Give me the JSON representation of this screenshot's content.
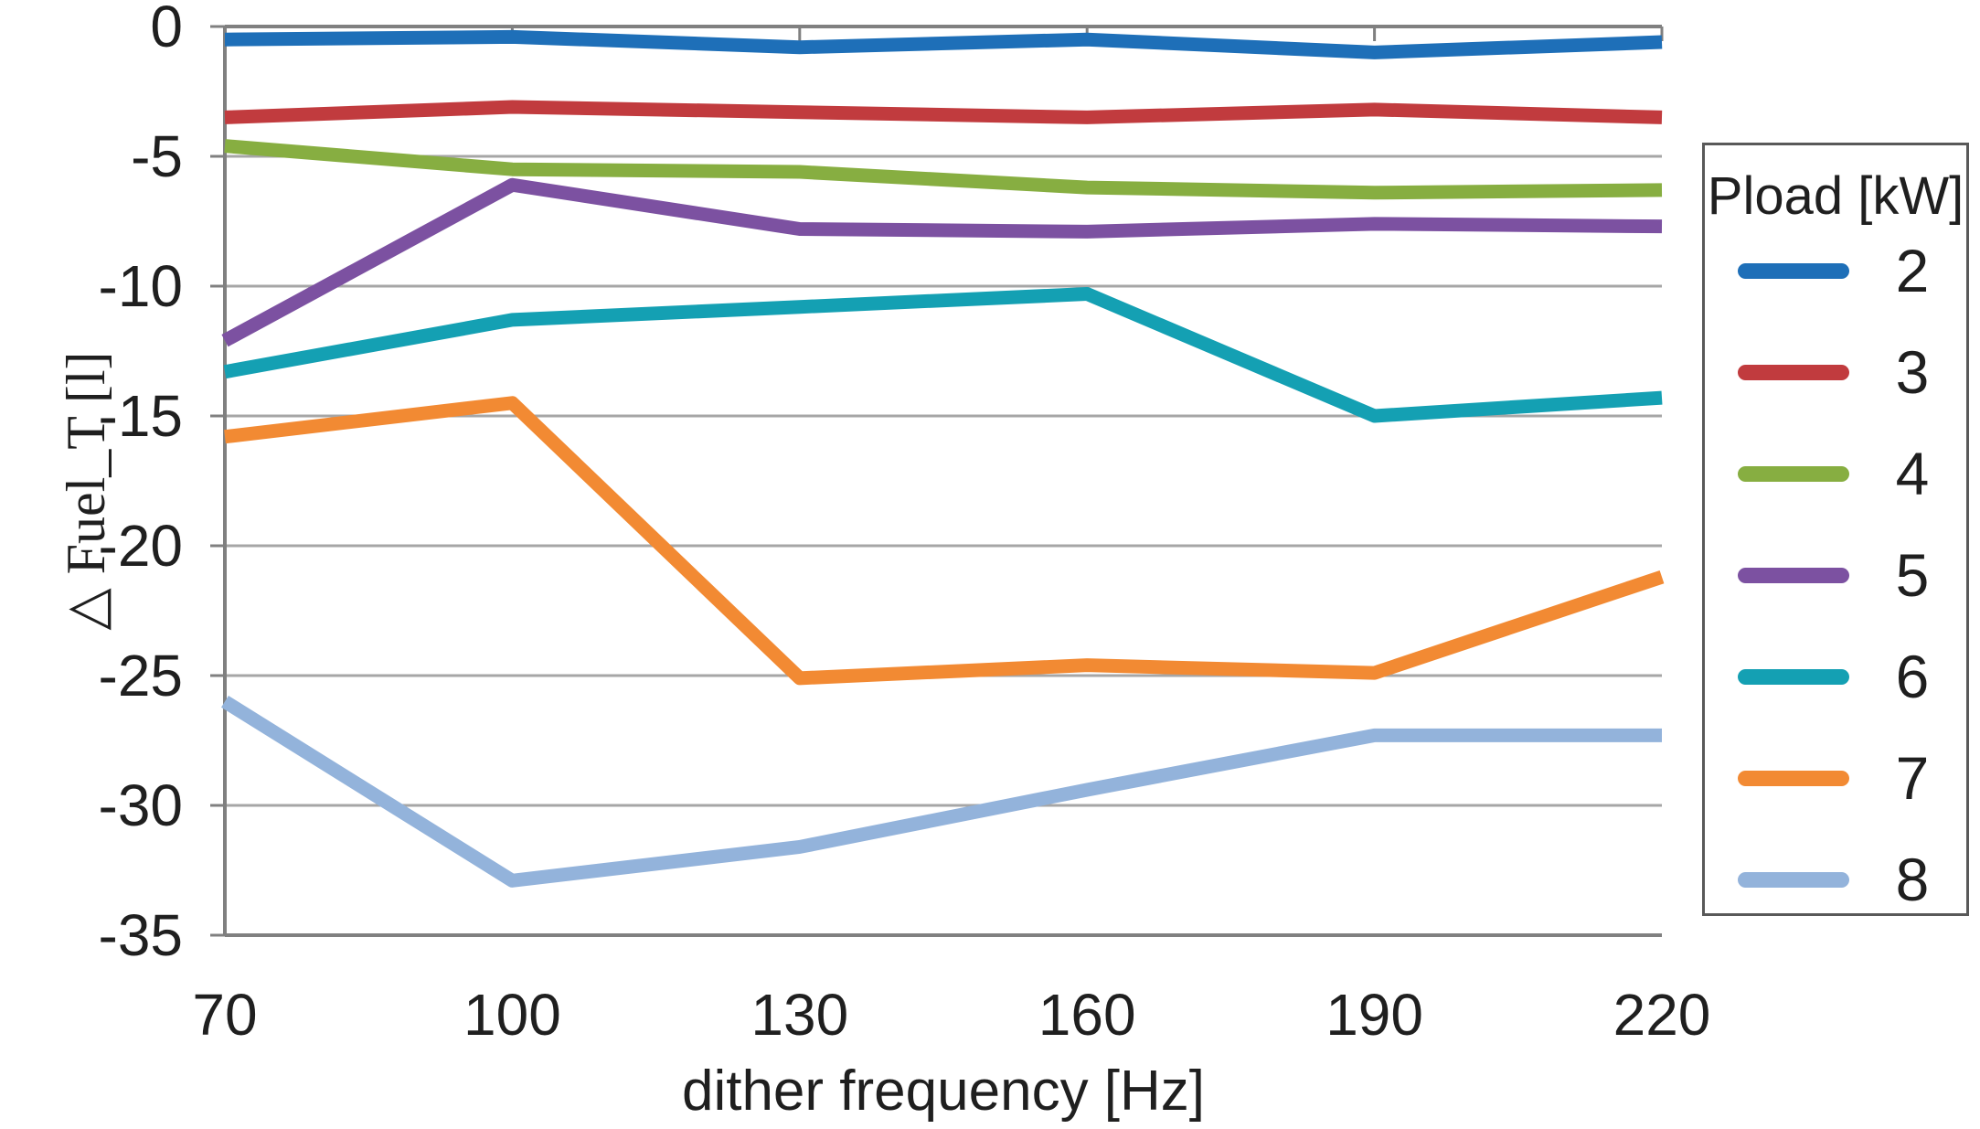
{
  "colors": {
    "background": "#FFFFFF",
    "grid": "#A6A6A6",
    "axis": "#808080",
    "text": "#1F1F1F",
    "legend_border": "#595959"
  },
  "chart_data": {
    "type": "line",
    "title": "",
    "xlabel": "dither frequency [Hz]",
    "ylabel": "△ Fuel_T [l]",
    "x": [
      70,
      100,
      130,
      160,
      190,
      220
    ],
    "x_tick_labels": [
      "70",
      "100",
      "130",
      "160",
      "190",
      "220"
    ],
    "y_ticks": [
      0,
      -5,
      -10,
      -15,
      -20,
      -25,
      -30,
      -35
    ],
    "y_tick_labels": [
      "0",
      "-5",
      "-10",
      "-15",
      "-20",
      "-25",
      "-30",
      "-35"
    ],
    "ylim": [
      -35,
      0
    ],
    "grid": true,
    "legend_title": "Pload [kW]",
    "legend_position": "right",
    "series": [
      {
        "name": "2",
        "color": "#1E6FB8",
        "values": [
          -0.5,
          -0.4,
          -0.8,
          -0.5,
          -1.0,
          -0.6
        ]
      },
      {
        "name": "3",
        "color": "#C13B3E",
        "values": [
          -3.5,
          -3.1,
          -3.3,
          -3.5,
          -3.2,
          -3.5
        ]
      },
      {
        "name": "4",
        "color": "#87AE41",
        "values": [
          -4.6,
          -5.5,
          -5.6,
          -6.2,
          -6.4,
          -6.3
        ]
      },
      {
        "name": "5",
        "color": "#7C51A1",
        "values": [
          -12.1,
          -6.1,
          -7.8,
          -7.9,
          -7.6,
          -7.7
        ]
      },
      {
        "name": "6",
        "color": "#14A0B3",
        "values": [
          -13.3,
          -11.3,
          -10.8,
          -10.3,
          -15.0,
          -14.3
        ]
      },
      {
        "name": "7",
        "color": "#F28A33",
        "values": [
          -15.8,
          -14.5,
          -25.1,
          -24.6,
          -24.9,
          -21.2
        ]
      },
      {
        "name": "8",
        "color": "#93B3DB",
        "values": [
          -26.0,
          -32.9,
          -31.6,
          -29.4,
          -27.3,
          -27.3
        ]
      }
    ]
  }
}
